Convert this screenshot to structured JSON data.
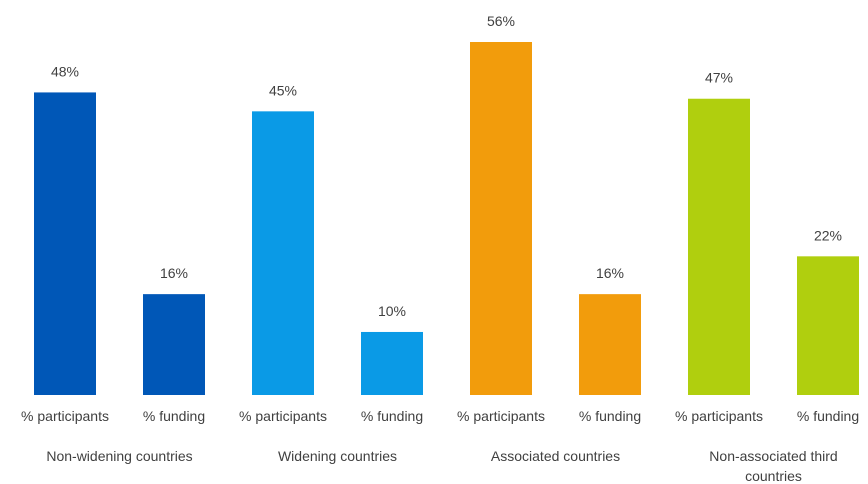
{
  "chart_data": {
    "type": "bar",
    "title": "",
    "xlabel": "",
    "ylabel": "",
    "ylim": [
      0,
      56
    ],
    "grid": false,
    "legend": "none",
    "value_suffix": "%",
    "groups": [
      {
        "label": "Non-widening countries",
        "label_lines": [
          "Non-widening countries"
        ],
        "color": "#0057b7",
        "bars": [
          {
            "category": "% participants",
            "value": 48
          },
          {
            "category": "% funding",
            "value": 16
          }
        ]
      },
      {
        "label": "Widening countries",
        "label_lines": [
          "Widening countries"
        ],
        "color": "#0a9ae6",
        "bars": [
          {
            "category": "% participants",
            "value": 45
          },
          {
            "category": "% funding",
            "value": 10
          }
        ]
      },
      {
        "label": "Associated countries",
        "label_lines": [
          "Associated countries"
        ],
        "color": "#f29c0c",
        "bars": [
          {
            "category": "% participants",
            "value": 56
          },
          {
            "category": "% funding",
            "value": 16
          }
        ]
      },
      {
        "label": "Non-associated third countries",
        "label_lines": [
          "Non-associated third",
          "countries"
        ],
        "color": "#b0cf0e",
        "bars": [
          {
            "category": "% participants",
            "value": 47
          },
          {
            "category": "% funding",
            "value": 22
          }
        ]
      }
    ]
  }
}
